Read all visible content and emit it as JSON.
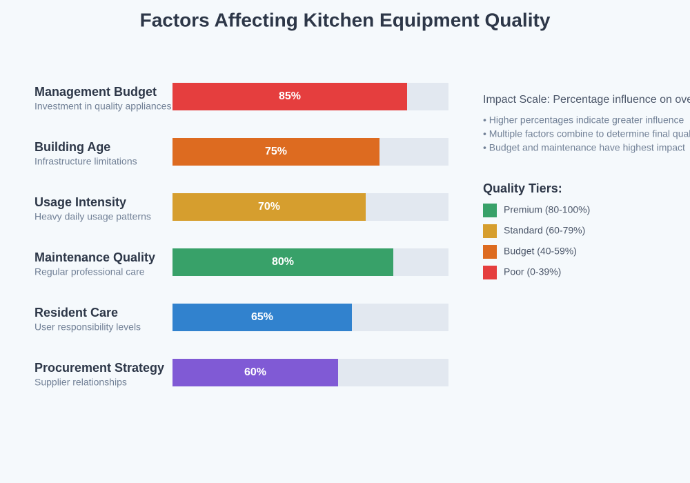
{
  "chart_data": {
    "type": "hbar",
    "title": "Factors Affecting Kitchen Equipment Quality",
    "categories": [
      "Management Budget",
      "Building Age",
      "Usage Intensity",
      "Maintenance Quality",
      "Resident Care",
      "Procurement Strategy"
    ],
    "descriptions": [
      "Investment in quality appliances",
      "Infrastructure limitations",
      "Heavy daily usage patterns",
      "Regular professional care",
      "User responsibility levels",
      "Supplier relationships"
    ],
    "values": [
      85,
      75,
      70,
      80,
      65,
      60
    ],
    "value_labels": [
      "85%",
      "75%",
      "70%",
      "80%",
      "65%",
      "60%"
    ],
    "colors": [
      "#e53e3e",
      "#dd6b20",
      "#d69e2e",
      "#38a169",
      "#3182ce",
      "#805ad5"
    ],
    "xlim": [
      0,
      100
    ]
  },
  "notes": {
    "heading": "Impact Scale: Percentage influence on ove",
    "bullets": [
      "• Higher percentages indicate greater influence",
      "• Multiple factors combine to determine final qual",
      "• Budget and maintenance have highest impact"
    ]
  },
  "legend": {
    "title": "Quality Tiers:",
    "items": [
      {
        "label": "Premium (80-100%)",
        "color": "#38a169"
      },
      {
        "label": "Standard (60-79%)",
        "color": "#d69e2e"
      },
      {
        "label": "Budget (40-59%)",
        "color": "#dd6b20"
      },
      {
        "label": "Poor (0-39%)",
        "color": "#e53e3e"
      }
    ]
  }
}
